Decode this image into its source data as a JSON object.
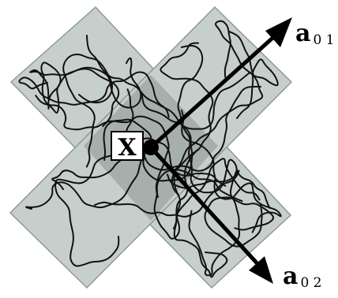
{
  "diagram": {
    "origin_label": "X",
    "vectors": [
      {
        "name": "a",
        "subscript": "0 1"
      },
      {
        "name": "a",
        "subscript": "0 2"
      }
    ],
    "colors": {
      "band_fill": "#c7cfcd",
      "band_stroke": "#8f9896",
      "overlap_fill": "#a6afad",
      "curve": "#111111",
      "arrow": "#000000",
      "background": "#ffffff"
    }
  }
}
